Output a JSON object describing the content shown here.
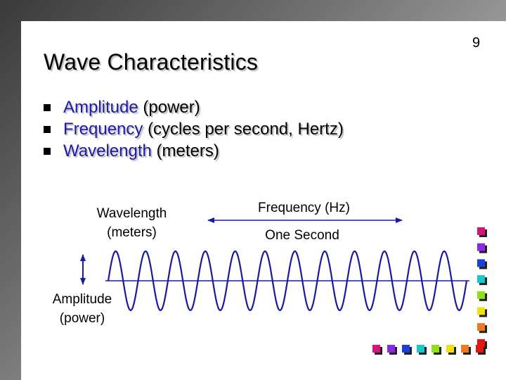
{
  "page_number": "9",
  "title": "Wave Characteristics",
  "bullets": [
    {
      "term": "Amplitude",
      "detail": "(power)"
    },
    {
      "term": "Frequency",
      "detail": "(cycles per second, Hertz)"
    },
    {
      "term": "Wavelength",
      "detail": "(meters)"
    }
  ],
  "diagram": {
    "wavelength_label_line1": "Wavelength",
    "wavelength_label_line2": "(meters)",
    "frequency_label": "Frequency (Hz)",
    "one_second_label": "One Second",
    "amplitude_label_line1": "Amplitude",
    "amplitude_label_line2": "(power)",
    "wave_cycles": 12,
    "wave_color": "#1a1aa0",
    "axis_color": "#1a1aa0"
  },
  "decor": {
    "square_colors": [
      "#d4147a",
      "#8a2be2",
      "#1c3fd8",
      "#18c8c8",
      "#90e018",
      "#f0e010",
      "#f07820",
      "#e01818"
    ]
  }
}
